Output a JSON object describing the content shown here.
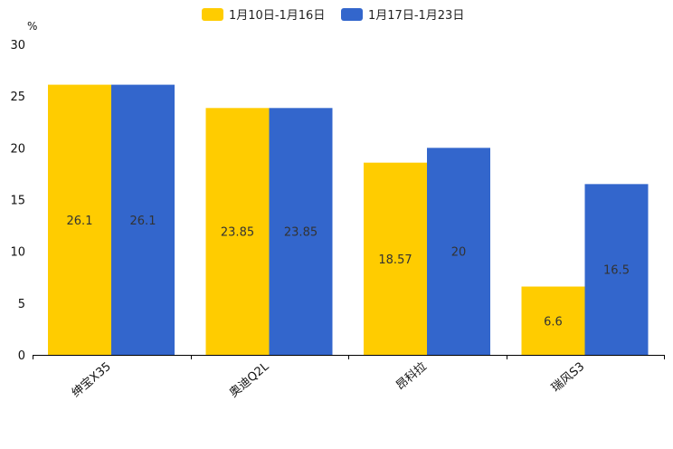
{
  "chart_data": {
    "type": "bar",
    "title": "",
    "xlabel": "",
    "ylabel": "",
    "unit_label": "%",
    "categories": [
      "绅宝X35",
      "奥迪Q2L",
      "昂科拉",
      "瑞风S3"
    ],
    "series": [
      {
        "name": "1月10日-1月16日",
        "color": "#FFCC00",
        "values": [
          26.1,
          23.85,
          18.57,
          6.6
        ]
      },
      {
        "name": "1月17日-1月23日",
        "color": "#3366CC",
        "values": [
          26.1,
          23.85,
          20,
          16.5
        ]
      }
    ],
    "ylim": [
      0,
      30
    ],
    "yticks": [
      0,
      5,
      10,
      15,
      20,
      25,
      30
    ],
    "grid": false,
    "legend_position": "top-center",
    "x_tick_rotation": -40
  }
}
